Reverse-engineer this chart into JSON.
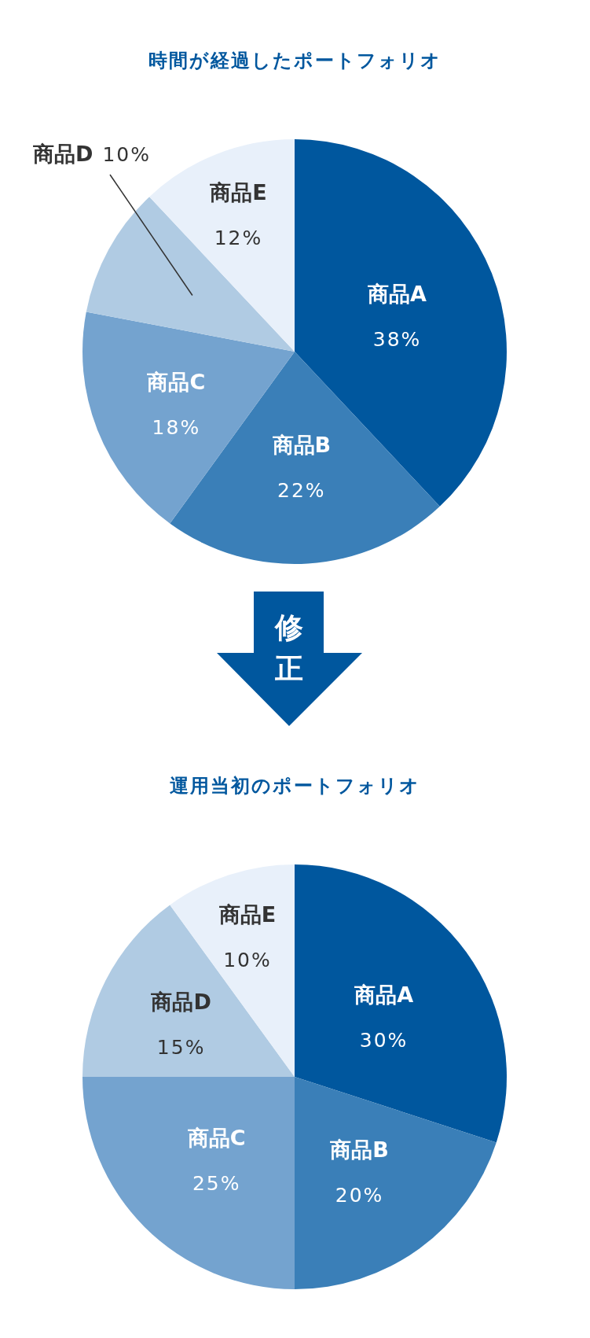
{
  "chart_data": [
    {
      "type": "pie",
      "title": "時間が経過したポートフォリオ",
      "categories": [
        "商品A",
        "商品B",
        "商品C",
        "商品D",
        "商品E"
      ],
      "values": [
        38,
        22,
        18,
        10,
        12
      ],
      "value_labels": [
        "38%",
        "22%",
        "18%",
        "10%",
        "12%"
      ],
      "colors": [
        "#00579e",
        "#3a7fb8",
        "#74a3cf",
        "#b0cbe3",
        "#e8f0fa"
      ],
      "annotations": [
        "修正"
      ]
    },
    {
      "type": "pie",
      "title": "運用当初のポートフォリオ",
      "categories": [
        "商品A",
        "商品B",
        "商品C",
        "商品D",
        "商品E"
      ],
      "values": [
        30,
        20,
        25,
        15,
        10
      ],
      "value_labels": [
        "30%",
        "20%",
        "25%",
        "15%",
        "10%"
      ],
      "colors": [
        "#00579e",
        "#3a7fb8",
        "#74a3cf",
        "#b0cbe3",
        "#e8f0fa"
      ]
    }
  ]
}
